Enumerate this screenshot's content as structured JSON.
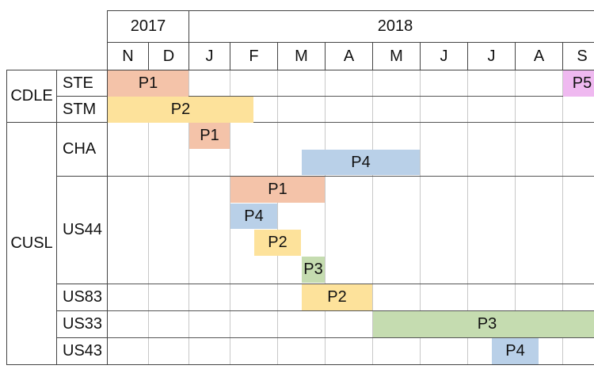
{
  "years": [
    {
      "label": "2017",
      "span": 2
    },
    {
      "label": "2018",
      "span": 9
    }
  ],
  "months": [
    "N",
    "D",
    "J",
    "F",
    "M",
    "A",
    "M",
    "J",
    "J",
    "A",
    "S"
  ],
  "groups": [
    {
      "label": "CDLE",
      "rows": [
        "ste",
        "stm"
      ]
    },
    {
      "label": "CUSL",
      "rows": [
        "cha",
        "us44",
        "us83",
        "us33",
        "us43"
      ]
    }
  ],
  "rows": [
    {
      "id": "ste",
      "label": "STE",
      "lanes": 1
    },
    {
      "id": "stm",
      "label": "STM",
      "lanes": 1
    },
    {
      "id": "cha",
      "label": "CHA",
      "lanes": 2
    },
    {
      "id": "us44",
      "label": "US44",
      "lanes": 4
    },
    {
      "id": "us83",
      "label": "US83",
      "lanes": 1
    },
    {
      "id": "us33",
      "label": "US33",
      "lanes": 1
    },
    {
      "id": "us43",
      "label": "US43",
      "lanes": 1
    }
  ],
  "colors": {
    "P1": "#f4c3a9",
    "P2": "#fde29b",
    "P3": "#c5dcb0",
    "P4": "#b9d0e8",
    "P5": "#efb9f0"
  },
  "bars": [
    {
      "row": "ste",
      "lane": 0,
      "label": "P1",
      "start": 0,
      "end": 2
    },
    {
      "row": "ste",
      "lane": 0,
      "label": "P5",
      "start": 10,
      "end": 11
    },
    {
      "row": "stm",
      "lane": 0,
      "label": "P2",
      "start": 0,
      "end": 3.5
    },
    {
      "row": "cha",
      "lane": 0,
      "label": "P1",
      "start": 2,
      "end": 3
    },
    {
      "row": "cha",
      "lane": 1,
      "label": "P4",
      "start": 4.5,
      "end": 7
    },
    {
      "row": "us44",
      "lane": 0,
      "label": "P1",
      "start": 3,
      "end": 5
    },
    {
      "row": "us44",
      "lane": 1,
      "label": "P4",
      "start": 3,
      "end": 4
    },
    {
      "row": "us44",
      "lane": 2,
      "label": "P2",
      "start": 3.5,
      "end": 4.5
    },
    {
      "row": "us44",
      "lane": 3,
      "label": "P3",
      "start": 4.5,
      "end": 5
    },
    {
      "row": "us83",
      "lane": 0,
      "label": "P2",
      "start": 4.5,
      "end": 6
    },
    {
      "row": "us33",
      "lane": 0,
      "label": "P3",
      "start": 6,
      "end": 11
    },
    {
      "row": "us43",
      "lane": 0,
      "label": "P4",
      "start": 8.5,
      "end": 9.5
    }
  ]
}
